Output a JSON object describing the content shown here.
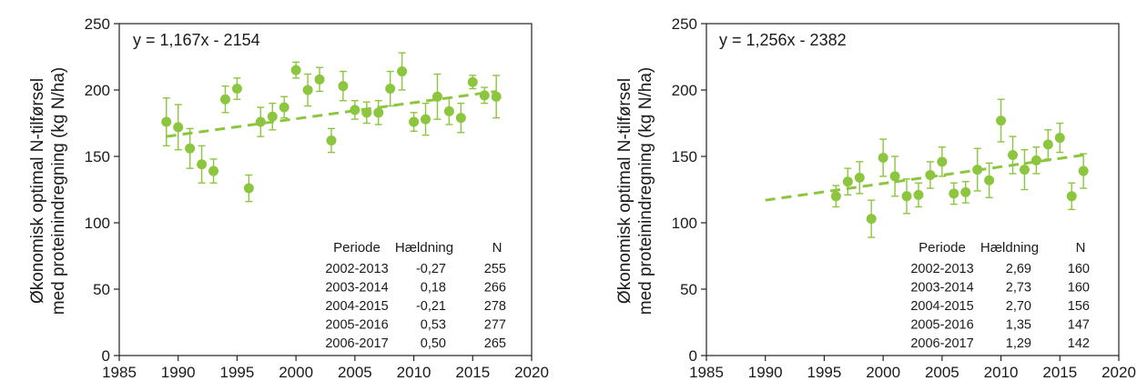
{
  "chart_data": [
    {
      "type": "scatter",
      "ylabel_line1": "Økonomisk optimal N-tilførsel",
      "ylabel_line2": "med proteinindregning (kg N/ha)",
      "equation": "y = 1,167x - 2154",
      "xlim": [
        1985,
        2020
      ],
      "ylim": [
        0,
        250
      ],
      "xticks": [
        "1985",
        "1990",
        "1995",
        "2000",
        "2005",
        "2010",
        "2015",
        "2020"
      ],
      "yticks": [
        "0",
        "50",
        "100",
        "150",
        "200",
        "250"
      ],
      "marker_color": "#8cc63f",
      "trend": {
        "x": [
          1989,
          2017
        ],
        "y": [
          165,
          199
        ]
      },
      "points": [
        {
          "x": 1989,
          "y": 176,
          "err": 18
        },
        {
          "x": 1990,
          "y": 172,
          "err": 17
        },
        {
          "x": 1991,
          "y": 156,
          "err": 15
        },
        {
          "x": 1992,
          "y": 144,
          "err": 14
        },
        {
          "x": 1993,
          "y": 139,
          "err": 9
        },
        {
          "x": 1994,
          "y": 193,
          "err": 10
        },
        {
          "x": 1995,
          "y": 201,
          "err": 8
        },
        {
          "x": 1996,
          "y": 126,
          "err": 10
        },
        {
          "x": 1997,
          "y": 176,
          "err": 11
        },
        {
          "x": 1998,
          "y": 180,
          "err": 10
        },
        {
          "x": 1999,
          "y": 187,
          "err": 8
        },
        {
          "x": 2000,
          "y": 215,
          "err": 6
        },
        {
          "x": 2001,
          "y": 200,
          "err": 12
        },
        {
          "x": 2002,
          "y": 208,
          "err": 9
        },
        {
          "x": 2003,
          "y": 162,
          "err": 9
        },
        {
          "x": 2004,
          "y": 203,
          "err": 11
        },
        {
          "x": 2005,
          "y": 185,
          "err": 7
        },
        {
          "x": 2006,
          "y": 183,
          "err": 8
        },
        {
          "x": 2007,
          "y": 183,
          "err": 9
        },
        {
          "x": 2008,
          "y": 201,
          "err": 13
        },
        {
          "x": 2009,
          "y": 214,
          "err": 14
        },
        {
          "x": 2010,
          "y": 176,
          "err": 7
        },
        {
          "x": 2011,
          "y": 178,
          "err": 12
        },
        {
          "x": 2012,
          "y": 195,
          "err": 17
        },
        {
          "x": 2013,
          "y": 184,
          "err": 10
        },
        {
          "x": 2014,
          "y": 179,
          "err": 11
        },
        {
          "x": 2015,
          "y": 206,
          "err": 5
        },
        {
          "x": 2016,
          "y": 196,
          "err": 6
        },
        {
          "x": 2017,
          "y": 195,
          "err": 16
        }
      ],
      "table": {
        "headers": [
          "Periode",
          "Hældning",
          "N"
        ],
        "rows": [
          [
            "2002-2013",
            "-0,27",
            "255"
          ],
          [
            "2003-2014",
            "0,18",
            "266"
          ],
          [
            "2004-2015",
            "-0,21",
            "278"
          ],
          [
            "2005-2016",
            "0,53",
            "277"
          ],
          [
            "2006-2017",
            "0,50",
            "265"
          ]
        ]
      }
    },
    {
      "type": "scatter",
      "ylabel_line1": "Økonomisk optimal N-tilførsel",
      "ylabel_line2": "med proteinindregning (kg N/ha)",
      "equation": "y = 1,256x - 2382",
      "xlim": [
        1985,
        2020
      ],
      "ylim": [
        0,
        250
      ],
      "xticks": [
        "1985",
        "1990",
        "1995",
        "2000",
        "2005",
        "2010",
        "2015",
        "2020"
      ],
      "yticks": [
        "0",
        "50",
        "100",
        "150",
        "200",
        "250"
      ],
      "marker_color": "#8cc63f",
      "trend": {
        "x": [
          1990,
          2017
        ],
        "y": [
          117,
          151
        ]
      },
      "points": [
        {
          "x": 1996,
          "y": 120,
          "err": 8
        },
        {
          "x": 1997,
          "y": 131,
          "err": 10
        },
        {
          "x": 1998,
          "y": 134,
          "err": 12
        },
        {
          "x": 1999,
          "y": 103,
          "err": 14
        },
        {
          "x": 2000,
          "y": 149,
          "err": 14
        },
        {
          "x": 2001,
          "y": 135,
          "err": 15
        },
        {
          "x": 2002,
          "y": 120,
          "err": 13
        },
        {
          "x": 2003,
          "y": 121,
          "err": 9
        },
        {
          "x": 2004,
          "y": 136,
          "err": 10
        },
        {
          "x": 2005,
          "y": 146,
          "err": 11
        },
        {
          "x": 2006,
          "y": 122,
          "err": 8
        },
        {
          "x": 2007,
          "y": 123,
          "err": 8
        },
        {
          "x": 2008,
          "y": 140,
          "err": 16
        },
        {
          "x": 2009,
          "y": 132,
          "err": 13
        },
        {
          "x": 2010,
          "y": 177,
          "err": 16
        },
        {
          "x": 2011,
          "y": 151,
          "err": 14
        },
        {
          "x": 2012,
          "y": 140,
          "err": 15
        },
        {
          "x": 2013,
          "y": 147,
          "err": 10
        },
        {
          "x": 2014,
          "y": 159,
          "err": 11
        },
        {
          "x": 2015,
          "y": 164,
          "err": 11
        },
        {
          "x": 2016,
          "y": 120,
          "err": 10
        },
        {
          "x": 2017,
          "y": 139,
          "err": 13
        }
      ],
      "table": {
        "headers": [
          "Periode",
          "Hældning",
          "N"
        ],
        "rows": [
          [
            "2002-2013",
            "2,69",
            "160"
          ],
          [
            "2003-2014",
            "2,73",
            "160"
          ],
          [
            "2004-2015",
            "2,70",
            "156"
          ],
          [
            "2005-2016",
            "1,35",
            "147"
          ],
          [
            "2006-2017",
            "1,29",
            "142"
          ]
        ]
      }
    }
  ]
}
